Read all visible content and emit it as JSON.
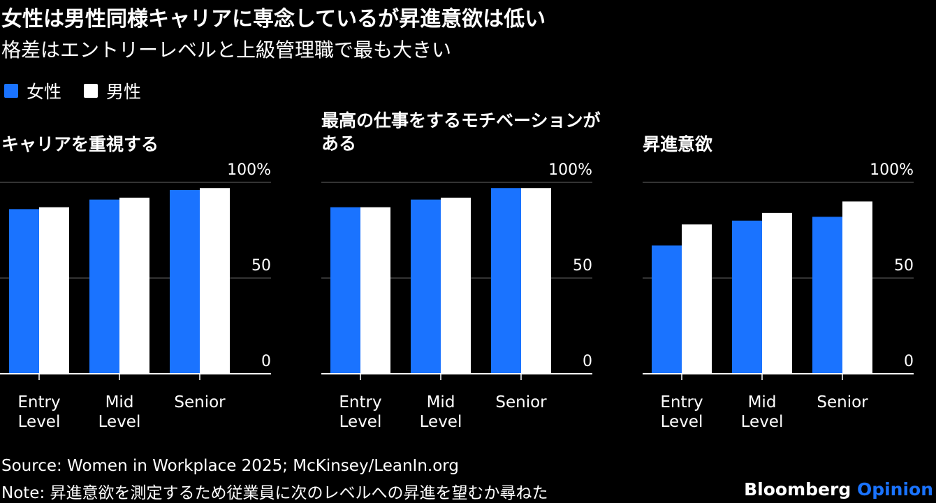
{
  "title": "女性は男性同様キャリアに専念しているが昇進意欲は低い",
  "subtitle": "格差はエントリーレベルと上級管理職で最も大きい",
  "colors": {
    "women": "#1a73ff",
    "men": "#ffffff",
    "grid": "#666666",
    "background": "#000000"
  },
  "legend": [
    {
      "label": "女性",
      "color": "#1a73ff"
    },
    {
      "label": "男性",
      "color": "#ffffff"
    }
  ],
  "chart_data": [
    {
      "type": "bar",
      "title": "キャリアを重視する",
      "categories": [
        "Entry Level",
        "Mid Level",
        "Senior"
      ],
      "series": [
        {
          "name": "女性",
          "values": [
            86,
            91,
            96
          ]
        },
        {
          "name": "男性",
          "values": [
            87,
            92,
            97
          ]
        }
      ],
      "ylim": [
        0,
        100
      ],
      "yticks": [
        "0",
        "50",
        "100%"
      ],
      "grid": true
    },
    {
      "type": "bar",
      "title": "最高の仕事をするモチベーションがある",
      "categories": [
        "Entry Level",
        "Mid Level",
        "Senior"
      ],
      "series": [
        {
          "name": "女性",
          "values": [
            87,
            91,
            97
          ]
        },
        {
          "name": "男性",
          "values": [
            87,
            92,
            97
          ]
        }
      ],
      "ylim": [
        0,
        100
      ],
      "yticks": [
        "0",
        "50",
        "100%"
      ],
      "grid": true
    },
    {
      "type": "bar",
      "title": "昇進意欲",
      "categories": [
        "Entry Level",
        "Mid Level",
        "Senior"
      ],
      "series": [
        {
          "name": "女性",
          "values": [
            67,
            80,
            82
          ]
        },
        {
          "name": "男性",
          "values": [
            78,
            84,
            90
          ]
        }
      ],
      "ylim": [
        0,
        100
      ],
      "yticks": [
        "0",
        "50",
        "100%"
      ],
      "grid": true
    }
  ],
  "source": "Source: Women in Workplace 2025; McKinsey/LeanIn.org",
  "note": "Note: 昇進意欲を測定するため従業員に次のレベルへの昇進を望むか尋ねた",
  "brand": {
    "name": "Bloomberg",
    "suffix": "Opinion"
  }
}
